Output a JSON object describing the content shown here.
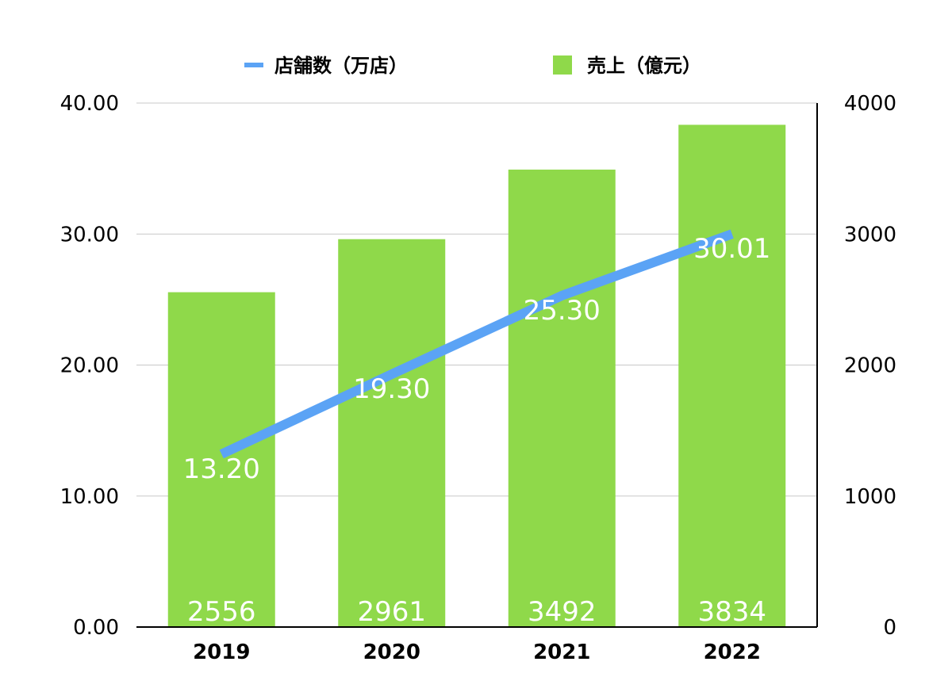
{
  "chart_data": {
    "type": "bar",
    "categories": [
      "2019",
      "2020",
      "2021",
      "2022"
    ],
    "series": [
      {
        "name": "売上（億元）",
        "type": "bar",
        "axis": "right",
        "values": [
          2556,
          2961,
          3492,
          3834
        ],
        "labels": [
          "2556",
          "2961",
          "3492",
          "3834"
        ],
        "color": "#8fd94a"
      },
      {
        "name": "店舗数（万店）",
        "type": "line",
        "axis": "left",
        "values": [
          13.2,
          19.3,
          25.3,
          30.01
        ],
        "labels": [
          "13.20",
          "19.30",
          "25.30",
          "30.01"
        ],
        "color": "#5ba3f5"
      }
    ],
    "left_axis": {
      "ylim": [
        0,
        40
      ],
      "ticks": [
        "0.00",
        "10.00",
        "20.00",
        "30.00",
        "40.00"
      ]
    },
    "right_axis": {
      "ylim": [
        0,
        4000
      ],
      "ticks": [
        "0",
        "1000",
        "2000",
        "3000",
        "4000"
      ]
    },
    "grid": true,
    "legend": "top"
  }
}
